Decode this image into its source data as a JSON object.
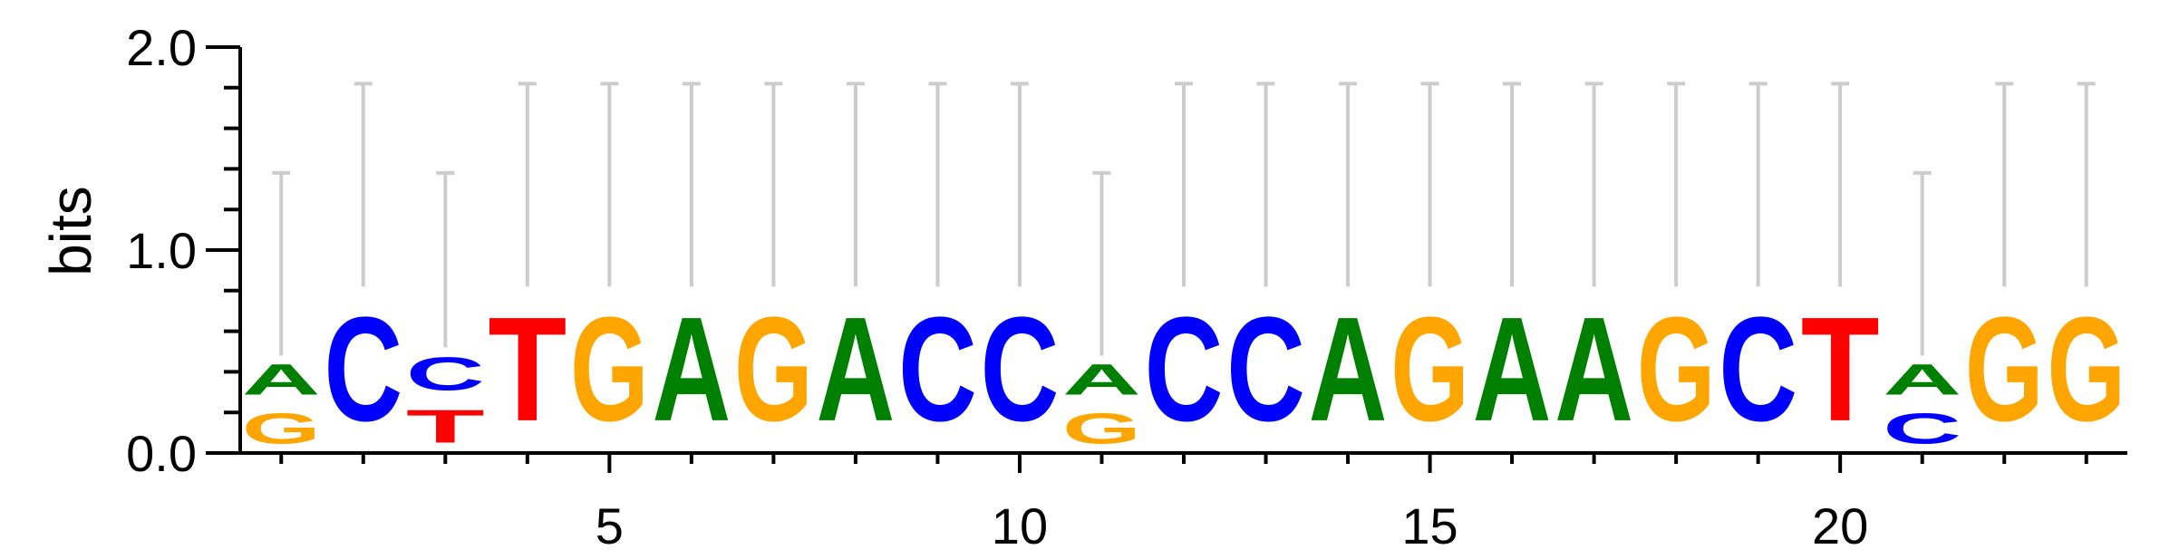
{
  "chart_data": {
    "type": "sequence-logo",
    "ylabel": "bits",
    "ylim": [
      0,
      2
    ],
    "y_ticks": [
      "0.0",
      "1.0",
      "2.0"
    ],
    "x_ticks": [
      5,
      10,
      15,
      20
    ],
    "positions": [
      {
        "pos": 1,
        "letters": [
          {
            "base": "G",
            "bits": 0.24
          },
          {
            "base": "A",
            "bits": 0.24
          }
        ],
        "error": 1.38
      },
      {
        "pos": 2,
        "letters": [
          {
            "base": "C",
            "bits": 0.82
          }
        ],
        "error": 1.82
      },
      {
        "pos": 3,
        "letters": [
          {
            "base": "T",
            "bits": 0.26
          },
          {
            "base": "C",
            "bits": 0.26
          }
        ],
        "error": 1.38
      },
      {
        "pos": 4,
        "letters": [
          {
            "base": "T",
            "bits": 0.82
          }
        ],
        "error": 1.82
      },
      {
        "pos": 5,
        "letters": [
          {
            "base": "G",
            "bits": 0.82
          }
        ],
        "error": 1.82
      },
      {
        "pos": 6,
        "letters": [
          {
            "base": "A",
            "bits": 0.82
          }
        ],
        "error": 1.82
      },
      {
        "pos": 7,
        "letters": [
          {
            "base": "G",
            "bits": 0.82
          }
        ],
        "error": 1.82
      },
      {
        "pos": 8,
        "letters": [
          {
            "base": "A",
            "bits": 0.82
          }
        ],
        "error": 1.82
      },
      {
        "pos": 9,
        "letters": [
          {
            "base": "C",
            "bits": 0.82
          }
        ],
        "error": 1.82
      },
      {
        "pos": 10,
        "letters": [
          {
            "base": "C",
            "bits": 0.82
          }
        ],
        "error": 1.82
      },
      {
        "pos": 11,
        "letters": [
          {
            "base": "G",
            "bits": 0.24
          },
          {
            "base": "A",
            "bits": 0.24
          }
        ],
        "error": 1.38
      },
      {
        "pos": 12,
        "letters": [
          {
            "base": "C",
            "bits": 0.82
          }
        ],
        "error": 1.82
      },
      {
        "pos": 13,
        "letters": [
          {
            "base": "C",
            "bits": 0.82
          }
        ],
        "error": 1.82
      },
      {
        "pos": 14,
        "letters": [
          {
            "base": "A",
            "bits": 0.82
          }
        ],
        "error": 1.82
      },
      {
        "pos": 15,
        "letters": [
          {
            "base": "G",
            "bits": 0.82
          }
        ],
        "error": 1.82
      },
      {
        "pos": 16,
        "letters": [
          {
            "base": "A",
            "bits": 0.82
          }
        ],
        "error": 1.82
      },
      {
        "pos": 17,
        "letters": [
          {
            "base": "A",
            "bits": 0.82
          }
        ],
        "error": 1.82
      },
      {
        "pos": 18,
        "letters": [
          {
            "base": "G",
            "bits": 0.82
          }
        ],
        "error": 1.82
      },
      {
        "pos": 19,
        "letters": [
          {
            "base": "C",
            "bits": 0.82
          }
        ],
        "error": 1.82
      },
      {
        "pos": 20,
        "letters": [
          {
            "base": "T",
            "bits": 0.82
          }
        ],
        "error": 1.82
      },
      {
        "pos": 21,
        "letters": [
          {
            "base": "C",
            "bits": 0.24
          },
          {
            "base": "A",
            "bits": 0.24
          }
        ],
        "error": 1.38
      },
      {
        "pos": 22,
        "letters": [
          {
            "base": "G",
            "bits": 0.82
          }
        ],
        "error": 1.82
      },
      {
        "pos": 23,
        "letters": [
          {
            "base": "G",
            "bits": 0.82
          }
        ],
        "error": 1.82
      }
    ],
    "colors": {
      "A": "#008000",
      "C": "#0000ff",
      "G": "#ffa500",
      "T": "#ff0000",
      "error": "#cccccc"
    },
    "grid": false,
    "legend": "none"
  }
}
